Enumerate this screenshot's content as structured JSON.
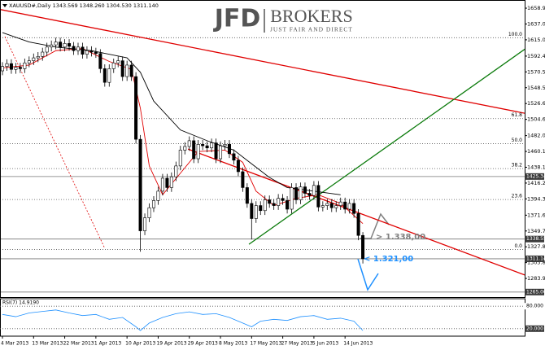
{
  "chart_data": {
    "type": "candlestick",
    "title": "XAUUSD#,Daily  1343.569 1348.260 1304.530 1311.140",
    "brand": {
      "mark": "JFD",
      "name": "BROKERS",
      "tagline": "JUST FAIR AND DIRECT"
    },
    "categories": [
      "4 Mar 2013",
      null,
      null,
      null,
      null,
      null,
      null,
      "13 Mar 2013",
      null,
      null,
      null,
      null,
      null,
      null,
      "22 Mar 2013",
      null,
      null,
      null,
      null,
      null,
      null,
      "1 Apr 2013",
      null,
      null,
      null,
      null,
      null,
      null,
      "10 Apr 2013",
      null,
      null,
      null,
      null,
      null,
      null,
      "19 Apr 2013",
      null,
      null,
      null,
      null,
      null,
      null,
      "29 Apr 2013",
      null,
      null,
      null,
      null,
      null,
      null,
      "8 May 2013",
      null,
      null,
      null,
      null,
      null,
      null,
      "17 May 2013",
      null,
      null,
      null,
      null,
      null,
      null,
      "27 May 2013",
      null,
      null,
      null,
      null,
      null,
      null,
      "5 Jun 2013",
      null,
      null,
      null,
      null,
      null,
      null,
      "14 Jun 2013",
      null,
      null,
      null,
      null
    ],
    "open": [
      1572,
      1578,
      1582,
      1574,
      1577,
      1575,
      1583,
      1586,
      1590,
      1592,
      1598,
      1605,
      1608,
      1612,
      1605,
      1610,
      1606,
      1600,
      1605,
      1595,
      1600,
      1598,
      1596,
      1575,
      1556,
      1575,
      1583,
      1586,
      1564,
      1580,
      1564,
      1477,
      1350,
      1368,
      1382,
      1392,
      1405,
      1423,
      1410,
      1425,
      1440,
      1462,
      1467,
      1475,
      1450,
      1470,
      1468,
      1465,
      1472,
      1450,
      1468,
      1470,
      1457,
      1448,
      1432,
      1410,
      1388,
      1367,
      1385,
      1378,
      1393,
      1388,
      1385,
      1395,
      1392,
      1380,
      1410,
      1393,
      1411,
      1402,
      1399,
      1413,
      1383,
      1385,
      1388,
      1382,
      1385,
      1390,
      1380,
      1388,
      1374,
      1343.569
    ],
    "high": [
      1584,
      1588,
      1588,
      1583,
      1583,
      1589,
      1592,
      1596,
      1598,
      1604,
      1611,
      1614,
      1618,
      1618,
      1616,
      1616,
      1612,
      1611,
      1611,
      1606,
      1606,
      1604,
      1602,
      1581,
      1581,
      1589,
      1592,
      1592,
      1586,
      1586,
      1570,
      1483,
      1374,
      1388,
      1398,
      1411,
      1429,
      1429,
      1431,
      1446,
      1468,
      1473,
      1481,
      1481,
      1476,
      1476,
      1474,
      1478,
      1478,
      1474,
      1476,
      1476,
      1463,
      1454,
      1438,
      1416,
      1394,
      1391,
      1391,
      1399,
      1399,
      1394,
      1401,
      1401,
      1398,
      1416,
      1416,
      1417,
      1417,
      1408,
      1419,
      1419,
      1391,
      1394,
      1394,
      1391,
      1396,
      1396,
      1394,
      1394,
      1380,
      1348.26
    ],
    "low": [
      1566,
      1572,
      1568,
      1568,
      1569,
      1569,
      1577,
      1580,
      1584,
      1586,
      1592,
      1599,
      1602,
      1599,
      1599,
      1600,
      1594,
      1594,
      1589,
      1589,
      1592,
      1590,
      1569,
      1550,
      1550,
      1569,
      1577,
      1558,
      1558,
      1558,
      1471,
      1321,
      1344,
      1362,
      1376,
      1386,
      1399,
      1404,
      1404,
      1419,
      1434,
      1456,
      1461,
      1444,
      1444,
      1462,
      1459,
      1459,
      1444,
      1444,
      1462,
      1451,
      1442,
      1426,
      1404,
      1382,
      1338,
      1361,
      1372,
      1372,
      1382,
      1379,
      1379,
      1386,
      1374,
      1374,
      1387,
      1387,
      1396,
      1393,
      1393,
      1377,
      1377,
      1379,
      1376,
      1376,
      1379,
      1374,
      1374,
      1368,
      1337,
      1304.53
    ],
    "close": [
      1578,
      1582,
      1574,
      1577,
      1575,
      1583,
      1586,
      1590,
      1592,
      1598,
      1605,
      1608,
      1612,
      1605,
      1610,
      1606,
      1600,
      1605,
      1595,
      1600,
      1598,
      1596,
      1575,
      1556,
      1575,
      1583,
      1586,
      1564,
      1580,
      1564,
      1477,
      1350,
      1368,
      1382,
      1392,
      1405,
      1423,
      1410,
      1425,
      1440,
      1462,
      1467,
      1475,
      1450,
      1470,
      1468,
      1465,
      1472,
      1450,
      1468,
      1470,
      1457,
      1448,
      1432,
      1410,
      1388,
      1367,
      1385,
      1378,
      1393,
      1388,
      1385,
      1395,
      1392,
      1380,
      1410,
      1393,
      1411,
      1402,
      1399,
      1413,
      1383,
      1385,
      1388,
      1382,
      1385,
      1390,
      1380,
      1388,
      1374,
      1343.569,
      1311.14
    ],
    "up_color": "#ffffff",
    "down_color": "#000000",
    "ylim": [
      1258,
      1670.3
    ],
    "yticks": [
      1658.97,
      1637.02,
      1615.06,
      1592.45,
      1570.52,
      1548.58,
      1526.63,
      1504.69,
      1482.08,
      1460.13,
      1438.19,
      1416.24,
      {
        "value": 1394.3,
        "label": "1394.30"
      },
      1371.69,
      1349.74,
      {
        "value": 1327.8,
        "label": "1327.80"
      },
      1305.85,
      1283.91
    ],
    "moving_averages": [
      {
        "color": "#e00000",
        "x": [
          0,
          6,
          12,
          18,
          24,
          29,
          31,
          33,
          36,
          40,
          44,
          50,
          54,
          57,
          61,
          66,
          71,
          76,
          81
        ],
        "values": [
          1576,
          1580,
          1600,
          1603,
          1585,
          1574,
          1520,
          1440,
          1400,
          1430,
          1460,
          1462,
          1445,
          1405,
          1385,
          1395,
          1400,
          1388,
          1360
        ]
      },
      {
        "color": "#000000",
        "x": [
          0,
          6,
          12,
          20,
          28,
          31,
          34,
          40,
          46,
          52,
          56,
          60,
          64,
          70,
          76
        ],
        "values": [
          1625,
          1612,
          1605,
          1600,
          1590,
          1570,
          1530,
          1490,
          1475,
          1462,
          1443,
          1424,
          1410,
          1405,
          1400
        ]
      }
    ],
    "trendlines": [
      {
        "color": "#e00000",
        "dashed": false,
        "x": [
          -0.4,
          117.5
        ],
        "values": [
          1657,
          1513
        ]
      },
      {
        "color": "#e00000",
        "dashed": false,
        "x": [
          41.7,
          117.5
        ],
        "values": [
          1463.5,
          1288.4
        ]
      },
      {
        "color": "#0a7a0a",
        "dashed": false,
        "x": [
          55.4,
          117.5
        ],
        "values": [
          1331.3,
          1602.5
        ]
      },
      {
        "color": "#e00000",
        "dashed": true,
        "x": [
          0.55,
          23
        ],
        "values": [
          1619.5,
          1325.7
        ]
      }
    ],
    "fib_levels": [
      {
        "value": 1618,
        "label": "100.0"
      },
      {
        "value": 1505.7,
        "label": "61.8"
      },
      {
        "value": 1471,
        "label": "50.0"
      },
      {
        "value": 1436.3,
        "label": "38.2"
      },
      {
        "value": 1393.4,
        "label": "23.6"
      },
      {
        "value": 1324,
        "label": "0.0"
      }
    ],
    "price_levels": [
      {
        "value": 1425.34,
        "label": "1425.34"
      },
      {
        "value": 1338.55,
        "label": "1338.55"
      },
      {
        "value": 1311.14,
        "label": "1311.14"
      },
      {
        "value": 1265,
        "label": "1265.00"
      }
    ],
    "annotations": [
      {
        "text": "> 1.338,00",
        "color": "#808080"
      },
      {
        "text": "< 1.321,00",
        "color": "#1e90ff"
      }
    ],
    "rsi": {
      "label": "RSI(7) 14.9190",
      "color": "#1e90ff",
      "ylim": [
        0,
        100
      ],
      "levels": [
        {
          "value": 80,
          "label": "80.000"
        },
        {
          "value": 20,
          "label": "20.000"
        }
      ],
      "x": [
        0,
        3,
        6,
        9,
        12,
        15,
        18,
        21,
        24,
        27,
        30,
        31,
        33,
        36,
        39,
        42,
        45,
        48,
        51,
        54,
        56,
        58,
        61,
        64,
        67,
        70,
        73,
        76,
        79,
        81
      ],
      "values": [
        58,
        52,
        62,
        66,
        70,
        62,
        55,
        58,
        45,
        50,
        25,
        15,
        35,
        50,
        60,
        65,
        58,
        60,
        50,
        35,
        25,
        40,
        45,
        42,
        52,
        55,
        45,
        48,
        40,
        15
      ]
    }
  }
}
